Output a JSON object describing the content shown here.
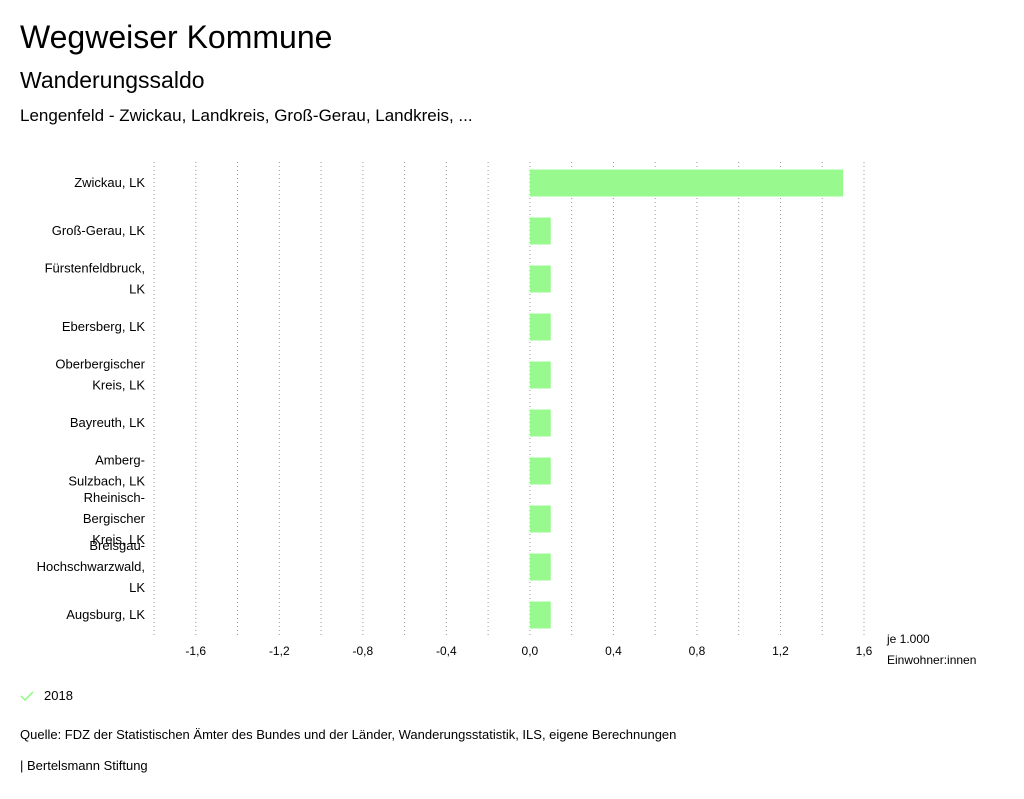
{
  "header": {
    "title": "Wegweiser Kommune",
    "subtitle": "Wanderungssaldo",
    "region": "Lengenfeld - Zwickau, Landkreis, Groß-Gerau, Landkreis, ..."
  },
  "chart_data": {
    "type": "bar",
    "orientation": "horizontal",
    "categories": [
      [
        "Zwickau, LK"
      ],
      [
        "Groß-Gerau, LK"
      ],
      [
        "Fürstenfeldbruck,",
        "LK"
      ],
      [
        "Ebersberg, LK"
      ],
      [
        "Oberbergischer",
        "Kreis, LK"
      ],
      [
        "Bayreuth, LK"
      ],
      [
        "Amberg-",
        "Sulzbach, LK"
      ],
      [
        "Rheinisch-",
        "Bergischer",
        "Kreis, LK"
      ],
      [
        "Breisgau-",
        "Hochschwarzwald,",
        "LK"
      ],
      [
        "Augsburg, LK"
      ]
    ],
    "series": [
      {
        "name": "2018",
        "values": [
          1.5,
          0.1,
          0.1,
          0.1,
          0.1,
          0.1,
          0.1,
          0.1,
          0.1,
          0.1
        ]
      }
    ],
    "xlim": [
      -1.8,
      1.6
    ],
    "xticks": [
      "-1,6",
      "-1,2",
      "-0,8",
      "-0,4",
      "0,0",
      "0,4",
      "0,8",
      "1,2",
      "1,6"
    ],
    "xtick_values": [
      -1.6,
      -1.2,
      -0.8,
      -0.4,
      0,
      0.4,
      0.8,
      1.2,
      1.6
    ],
    "xlabel": [
      "je 1.000",
      "Einwohner:innen"
    ],
    "bar_color": "#98f98f",
    "grid": true,
    "legend_position": "bottom-left"
  },
  "legend": {
    "label": "2018",
    "icon": "check-icon",
    "color": "#98f98f"
  },
  "footer": {
    "source": "Quelle: FDZ der Statistischen Ämter des Bundes und der Länder, Wanderungsstatistik, ILS, eigene Berechnungen",
    "credit": "| Bertelsmann Stiftung"
  }
}
